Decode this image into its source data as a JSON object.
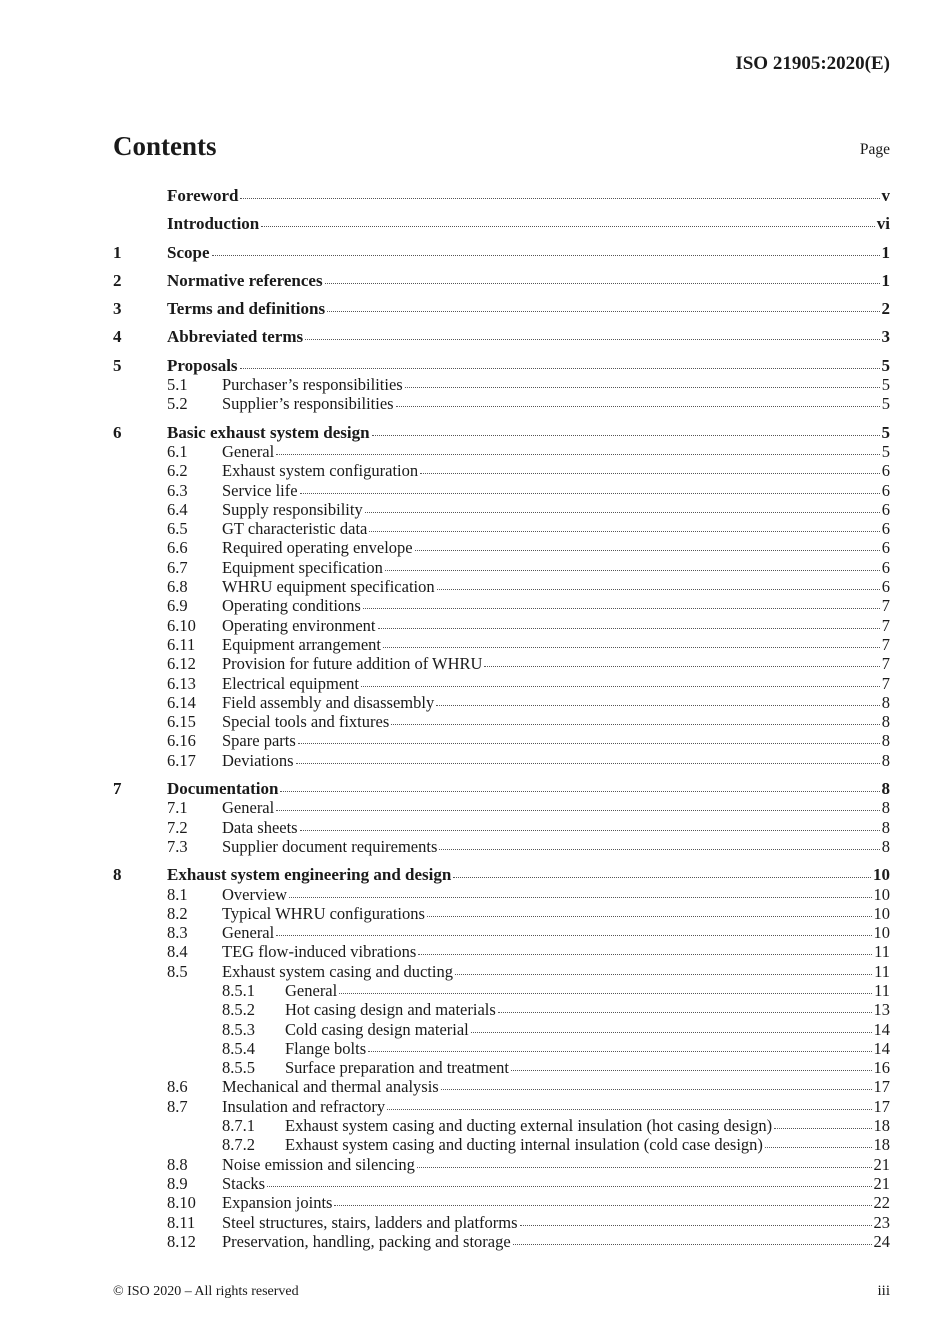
{
  "header": {
    "doc_id": "ISO 21905:2020(E)"
  },
  "title": "Contents",
  "page_label": "Page",
  "entries": [
    {
      "level": 1,
      "num": "",
      "title": "Foreword",
      "page": "v"
    },
    {
      "level": 1,
      "num": "",
      "title": "Introduction",
      "page": "vi"
    },
    {
      "level": 1,
      "num": "1",
      "title": "Scope",
      "page": "1"
    },
    {
      "level": 1,
      "num": "2",
      "title": "Normative references",
      "page": "1"
    },
    {
      "level": 1,
      "num": "3",
      "title": "Terms and definitions",
      "page": "2"
    },
    {
      "level": 1,
      "num": "4",
      "title": "Abbreviated terms",
      "page": "3"
    },
    {
      "level": 1,
      "num": "5",
      "title": "Proposals",
      "page": "5"
    },
    {
      "level": 2,
      "num": "5.1",
      "title": "Purchaser’s responsibilities",
      "page": "5"
    },
    {
      "level": 2,
      "num": "5.2",
      "title": "Supplier’s responsibilities",
      "page": "5"
    },
    {
      "level": 1,
      "num": "6",
      "title": "Basic exhaust system design",
      "page": "5"
    },
    {
      "level": 2,
      "num": "6.1",
      "title": "General",
      "page": "5"
    },
    {
      "level": 2,
      "num": "6.2",
      "title": "Exhaust system configuration",
      "page": "6"
    },
    {
      "level": 2,
      "num": "6.3",
      "title": "Service life",
      "page": "6"
    },
    {
      "level": 2,
      "num": "6.4",
      "title": "Supply responsibility",
      "page": "6"
    },
    {
      "level": 2,
      "num": "6.5",
      "title": "GT characteristic data",
      "page": "6"
    },
    {
      "level": 2,
      "num": "6.6",
      "title": "Required operating envelope",
      "page": "6"
    },
    {
      "level": 2,
      "num": "6.7",
      "title": "Equipment specification",
      "page": "6"
    },
    {
      "level": 2,
      "num": "6.8",
      "title": "WHRU equipment specification",
      "page": "6"
    },
    {
      "level": 2,
      "num": "6.9",
      "title": "Operating conditions",
      "page": "7"
    },
    {
      "level": 2,
      "num": "6.10",
      "title": "Operating environment",
      "page": "7"
    },
    {
      "level": 2,
      "num": "6.11",
      "title": "Equipment arrangement",
      "page": "7"
    },
    {
      "level": 2,
      "num": "6.12",
      "title": "Provision for future addition of WHRU",
      "page": "7"
    },
    {
      "level": 2,
      "num": "6.13",
      "title": "Electrical equipment",
      "page": "7"
    },
    {
      "level": 2,
      "num": "6.14",
      "title": "Field assembly and disassembly",
      "page": "8"
    },
    {
      "level": 2,
      "num": "6.15",
      "title": "Special tools and fixtures",
      "page": "8"
    },
    {
      "level": 2,
      "num": "6.16",
      "title": "Spare parts",
      "page": "8"
    },
    {
      "level": 2,
      "num": "6.17",
      "title": "Deviations",
      "page": "8"
    },
    {
      "level": 1,
      "num": "7",
      "title": "Documentation",
      "page": "8"
    },
    {
      "level": 2,
      "num": "7.1",
      "title": "General",
      "page": "8"
    },
    {
      "level": 2,
      "num": "7.2",
      "title": "Data sheets",
      "page": "8"
    },
    {
      "level": 2,
      "num": "7.3",
      "title": "Supplier document requirements",
      "page": "8"
    },
    {
      "level": 1,
      "num": "8",
      "title": "Exhaust system engineering and design",
      "page": "10"
    },
    {
      "level": 2,
      "num": "8.1",
      "title": "Overview",
      "page": "10"
    },
    {
      "level": 2,
      "num": "8.2",
      "title": "Typical WHRU configurations",
      "page": "10"
    },
    {
      "level": 2,
      "num": "8.3",
      "title": "General",
      "page": "10"
    },
    {
      "level": 2,
      "num": "8.4",
      "title": "TEG flow-induced vibrations",
      "page": "11"
    },
    {
      "level": 2,
      "num": "8.5",
      "title": "Exhaust system casing and ducting",
      "page": "11"
    },
    {
      "level": 3,
      "num": "8.5.1",
      "title": "General",
      "page": "11"
    },
    {
      "level": 3,
      "num": "8.5.2",
      "title": "Hot casing design and materials",
      "page": "13"
    },
    {
      "level": 3,
      "num": "8.5.3",
      "title": "Cold casing design material",
      "page": "14"
    },
    {
      "level": 3,
      "num": "8.5.4",
      "title": "Flange bolts",
      "page": "14"
    },
    {
      "level": 3,
      "num": "8.5.5",
      "title": "Surface preparation and treatment",
      "page": "16"
    },
    {
      "level": 2,
      "num": "8.6",
      "title": "Mechanical and thermal analysis",
      "page": "17"
    },
    {
      "level": 2,
      "num": "8.7",
      "title": "Insulation and refractory",
      "page": "17"
    },
    {
      "level": 3,
      "num": "8.7.1",
      "title": "Exhaust system casing and ducting external insulation (hot casing design)",
      "page": "18"
    },
    {
      "level": 3,
      "num": "8.7.2",
      "title": "Exhaust system casing and ducting internal insulation (cold case design)",
      "page": "18"
    },
    {
      "level": 2,
      "num": "8.8",
      "title": "Noise emission and silencing",
      "page": "21"
    },
    {
      "level": 2,
      "num": "8.9",
      "title": "Stacks",
      "page": "21"
    },
    {
      "level": 2,
      "num": "8.10",
      "title": "Expansion joints",
      "page": "22"
    },
    {
      "level": 2,
      "num": "8.11",
      "title": "Steel structures, stairs, ladders and platforms",
      "page": "23"
    },
    {
      "level": 2,
      "num": "8.12",
      "title": "Preservation, handling, packing and storage",
      "page": "24"
    }
  ],
  "footer": {
    "copyright": "© ISO 2020 – All rights reserved",
    "page_number": "iii"
  }
}
